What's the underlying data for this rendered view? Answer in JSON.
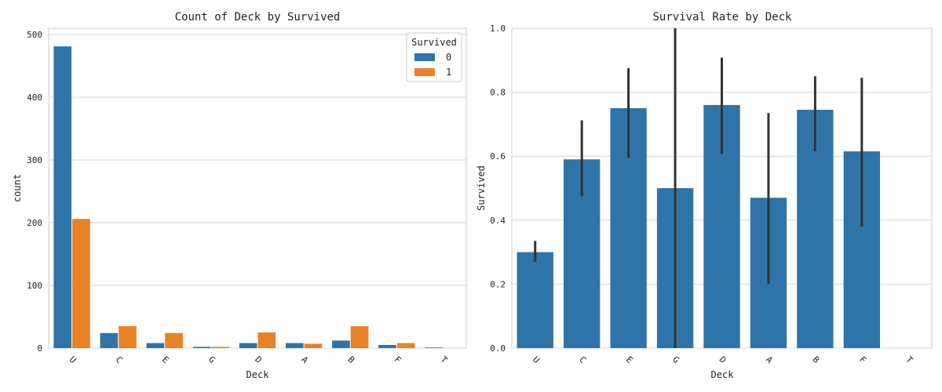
{
  "colors": {
    "series0": "#2f74a8",
    "series1": "#e98226",
    "errbar": "#333333",
    "grid": "#d6d6d6"
  },
  "chart_data": [
    {
      "type": "bar",
      "title": "Count of Deck by Survived",
      "xlabel": "Deck",
      "ylabel": "count",
      "categories": [
        "U",
        "C",
        "E",
        "G",
        "D",
        "A",
        "B",
        "F",
        "T"
      ],
      "series": [
        {
          "name": "0",
          "values": [
            481,
            24,
            8,
            2,
            8,
            8,
            12,
            5,
            1
          ]
        },
        {
          "name": "1",
          "values": [
            206,
            35,
            24,
            2,
            25,
            7,
            35,
            8,
            0
          ]
        }
      ],
      "ylim": [
        0,
        510
      ],
      "yticks": [
        0,
        100,
        200,
        300,
        400,
        500
      ],
      "grid": true,
      "legend": {
        "title": "Survived",
        "position": "top-right"
      }
    },
    {
      "type": "bar",
      "title": "Survival Rate by Deck",
      "xlabel": "Deck",
      "ylabel": "Survived",
      "categories": [
        "U",
        "C",
        "E",
        "G",
        "D",
        "A",
        "B",
        "F",
        "T"
      ],
      "values": [
        0.3,
        0.59,
        0.75,
        0.5,
        0.76,
        0.47,
        0.745,
        0.615,
        0.0
      ],
      "ci_low": [
        0.27,
        0.475,
        0.595,
        0.0,
        0.607,
        0.2,
        0.615,
        0.38,
        null
      ],
      "ci_high": [
        0.335,
        0.712,
        0.875,
        1.0,
        0.908,
        0.735,
        0.85,
        0.845,
        null
      ],
      "ylim": [
        0,
        1.0
      ],
      "yticks": [
        "0.0",
        "0.2",
        "0.4",
        "0.6",
        "0.8",
        "1.0"
      ],
      "grid": true
    }
  ]
}
